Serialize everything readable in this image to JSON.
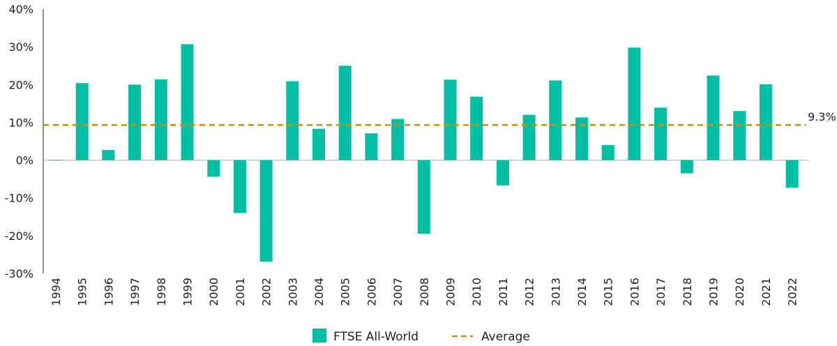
{
  "chart_data": {
    "type": "bar",
    "categories": [
      "1994",
      "1995",
      "1996",
      "1997",
      "1998",
      "1999",
      "2000",
      "2001",
      "2002",
      "2003",
      "2004",
      "2005",
      "2006",
      "2007",
      "2008",
      "2009",
      "2010",
      "2011",
      "2012",
      "2013",
      "2014",
      "2015",
      "2016",
      "2017",
      "2018",
      "2019",
      "2020",
      "2021",
      "2022"
    ],
    "series": [
      {
        "name": "FTSE All-World",
        "color": "#00bfa5",
        "values": [
          0.1,
          20.4,
          2.7,
          20.0,
          21.4,
          30.7,
          -4.4,
          -14.0,
          -26.9,
          20.9,
          8.3,
          25.0,
          7.1,
          10.9,
          -19.5,
          21.3,
          16.8,
          -6.7,
          12.0,
          21.1,
          11.3,
          4.0,
          29.8,
          13.9,
          -3.5,
          22.4,
          13.0,
          20.1,
          -7.3
        ]
      }
    ],
    "average": {
      "name": "Average",
      "value": 9.3,
      "label": "9.3%",
      "color": "#c8900a"
    },
    "y_ticks": [
      {
        "value": 40,
        "label": "40%"
      },
      {
        "value": 30,
        "label": "30%"
      },
      {
        "value": 20,
        "label": "20%"
      },
      {
        "value": 10,
        "label": "10%"
      },
      {
        "value": 0,
        "label": "0%"
      },
      {
        "value": -10,
        "label": "-10%"
      },
      {
        "value": -20,
        "label": "-20%"
      },
      {
        "value": -30,
        "label": "-30%"
      }
    ],
    "ylim": [
      -30,
      40
    ],
    "grid": false,
    "legend_position": "bottom-center"
  }
}
